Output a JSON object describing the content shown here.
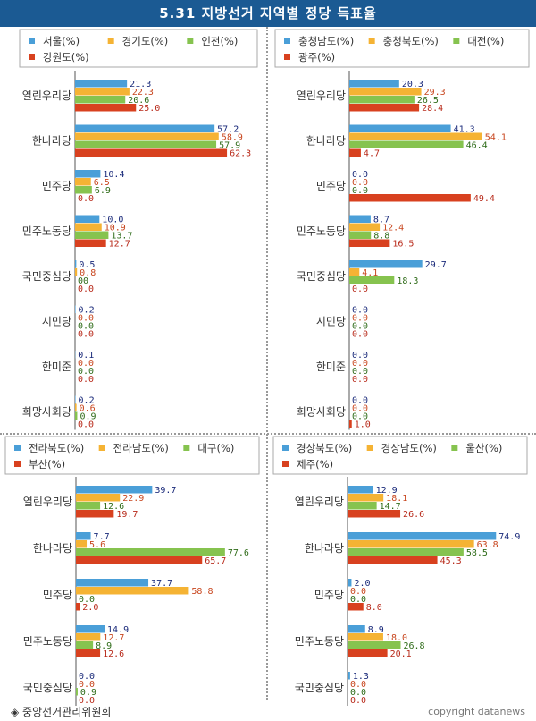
{
  "title": "5.31 지방선거 지역별 정당 득표율",
  "footer": {
    "source": "◈ 중앙선거관리위원회",
    "copyright": "copyright datanews"
  },
  "colors": {
    "blue": "#4a9fd8",
    "orange": "#f5b334",
    "green": "#86c34f",
    "red": "#d8411f",
    "valueBlue": "#1a2a7a",
    "valueOrange": "#c8461e",
    "valueGreen": "#2e6b18",
    "valueRed": "#b82a1a"
  },
  "chart_data": [
    {
      "type": "bar",
      "categories": [
        "열린우리당",
        "한나라당",
        "민주당",
        "민주노동당",
        "국민중심당",
        "시민당",
        "한미준",
        "희망사회당"
      ],
      "series": [
        {
          "name": "서울(%)",
          "values": [
            21.3,
            57.2,
            10.4,
            10.0,
            0.5,
            0.2,
            0.1,
            0.2
          ],
          "labels": [
            "21.3",
            "57.2",
            "10.4",
            "10.0",
            "0.5",
            "0.2",
            "0.1",
            "0.2"
          ]
        },
        {
          "name": "경기도(%)",
          "values": [
            22.3,
            58.9,
            6.5,
            10.9,
            0.8,
            0.0,
            0.0,
            0.6
          ],
          "labels": [
            "22.3",
            "58.9",
            "6.5",
            "10.9",
            "0.8",
            "0.0",
            "0.0",
            "0.6"
          ]
        },
        {
          "name": "인천(%)",
          "values": [
            20.6,
            57.9,
            6.9,
            13.7,
            0.0,
            0.0,
            0.0,
            0.9
          ],
          "labels": [
            "20.6",
            "57.9",
            "6.9",
            "13.7",
            "00",
            "0.0",
            "0.0",
            "0.9"
          ]
        },
        {
          "name": "강원도(%)",
          "values": [
            25.0,
            62.3,
            0.0,
            12.7,
            0.0,
            0.0,
            0.0,
            0.0
          ],
          "labels": [
            "25.0",
            "62.3",
            "0.0",
            "12.7",
            "0.0",
            "0.0",
            "0.0",
            "0.0"
          ]
        }
      ]
    },
    {
      "type": "bar",
      "categories": [
        "열린우리당",
        "한나라당",
        "민주당",
        "민주노동당",
        "국민중심당",
        "시민당",
        "한미준",
        "희망사회당"
      ],
      "series": [
        {
          "name": "충청남도(%)",
          "values": [
            20.3,
            41.3,
            0.0,
            8.7,
            29.7,
            0.0,
            0.0,
            0.0
          ],
          "labels": [
            "20.3",
            "41.3",
            "0.0",
            "8.7",
            "29.7",
            "0.0",
            "0.0",
            "0.0"
          ]
        },
        {
          "name": "충청북도(%)",
          "values": [
            29.3,
            54.1,
            0.0,
            12.4,
            4.1,
            0.0,
            0.0,
            0.0
          ],
          "labels": [
            "29.3",
            "54.1",
            "0.0",
            "12.4",
            "4.1",
            "0.0",
            "0.0",
            "0.0"
          ]
        },
        {
          "name": "대전(%)",
          "values": [
            26.5,
            46.4,
            0.0,
            8.8,
            18.3,
            0.0,
            0.0,
            0.0
          ],
          "labels": [
            "26.5",
            "46.4",
            "0.0",
            "8.8",
            "18.3",
            "0.0",
            "0.0",
            "0.0"
          ]
        },
        {
          "name": "광주(%)",
          "values": [
            28.4,
            4.7,
            49.4,
            16.5,
            0.0,
            0.0,
            0.0,
            1.0
          ],
          "labels": [
            "28.4",
            "4.7",
            "49.4",
            "16.5",
            "0.0",
            "0.0",
            "0.0",
            "1.0"
          ]
        }
      ]
    },
    {
      "type": "bar",
      "categories": [
        "열린우리당",
        "한나라당",
        "민주당",
        "민주노동당",
        "국민중심당"
      ],
      "series": [
        {
          "name": "전라북도(%)",
          "values": [
            39.7,
            7.7,
            37.7,
            14.9,
            0.0
          ],
          "labels": [
            "39.7",
            "7.7",
            "37.7",
            "14.9",
            "0.0"
          ]
        },
        {
          "name": "전라남도(%)",
          "values": [
            22.9,
            5.6,
            58.8,
            12.7,
            0.0
          ],
          "labels": [
            "22.9",
            "5.6",
            "58.8",
            "12.7",
            "0.0"
          ]
        },
        {
          "name": "대구(%)",
          "values": [
            12.6,
            77.6,
            0.0,
            8.9,
            0.9
          ],
          "labels": [
            "12.6",
            "77.6",
            "0.0",
            "8.9",
            "0.9"
          ]
        },
        {
          "name": "부산(%)",
          "values": [
            19.7,
            65.7,
            2.0,
            12.6,
            0.0
          ],
          "labels": [
            "19.7",
            "65.7",
            "2.0",
            "12.6",
            "0.0"
          ]
        }
      ]
    },
    {
      "type": "bar",
      "categories": [
        "열린우리당",
        "한나라당",
        "민주당",
        "민주노동당",
        "국민중심당"
      ],
      "series": [
        {
          "name": "경상북도(%)",
          "values": [
            12.9,
            74.9,
            2.0,
            8.9,
            1.3
          ],
          "labels": [
            "12.9",
            "74.9",
            "2.0",
            "8.9",
            "1.3"
          ]
        },
        {
          "name": "경상남도(%)",
          "values": [
            18.1,
            63.8,
            0.0,
            18.0,
            0.0
          ],
          "labels": [
            "18.1",
            "63.8",
            "0.0",
            "18.0",
            "0.0"
          ]
        },
        {
          "name": "울산(%)",
          "values": [
            14.7,
            58.5,
            0.0,
            26.8,
            0.0
          ],
          "labels": [
            "14.7",
            "58.5",
            "0.0",
            "26.8",
            "0.0"
          ]
        },
        {
          "name": "제주(%)",
          "values": [
            26.6,
            45.3,
            8.0,
            20.1,
            0.0
          ],
          "labels": [
            "26.6",
            "45.3",
            "8.0",
            "20.1",
            "0.0"
          ]
        }
      ]
    }
  ]
}
